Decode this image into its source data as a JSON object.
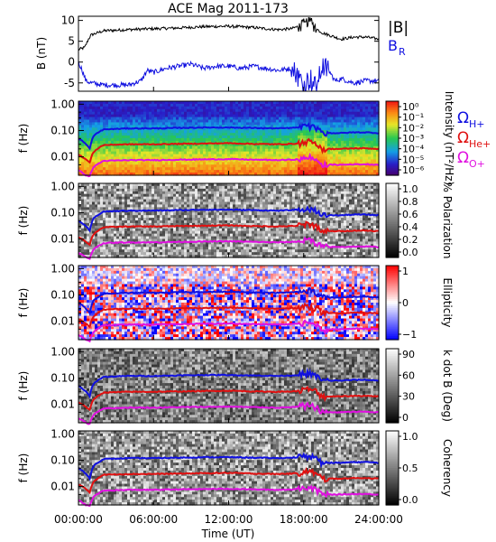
{
  "title": "ACE Mag 2011-173",
  "colors": {
    "total_field": "#000000",
    "radial_field": "#1010e0",
    "h_plus": "#1010e0",
    "he_plus": "#e01010",
    "o_plus": "#e010e0"
  },
  "chart_data": [
    {
      "type": "line",
      "panel": "magnetic-field",
      "title": "ACE Mag 2011-173",
      "ylabel": "B (nT)",
      "ylim": [
        -7,
        11
      ],
      "yticks": [
        "-5",
        "0",
        "5",
        "10"
      ],
      "ytick_values": [
        -5,
        0,
        5,
        10
      ],
      "xlim": [
        0,
        24
      ],
      "legend_position": "right",
      "series": [
        {
          "name": "|B|",
          "color": "#000000",
          "x": [
            0,
            0.5,
            0.8,
            1,
            2,
            4,
            6,
            8,
            10,
            12,
            14,
            15,
            16,
            17,
            17.5,
            18,
            18.5,
            19,
            19.5,
            20,
            20.5,
            21,
            22,
            23,
            24
          ],
          "y": [
            3,
            3.5,
            5.5,
            6.5,
            7.5,
            7.8,
            8.0,
            8.2,
            8.5,
            8.6,
            8.3,
            8.0,
            7.8,
            8.0,
            8.5,
            9.0,
            10.0,
            8.0,
            7.0,
            6.5,
            6.0,
            5.5,
            6.0,
            6.0,
            5.5
          ]
        },
        {
          "name": "B_R",
          "color": "#1010e0",
          "x": [
            0,
            0.3,
            0.6,
            1,
            2,
            4,
            5,
            5.5,
            6,
            7,
            8,
            9,
            10,
            11,
            12,
            13,
            14,
            15,
            16,
            17,
            17.5,
            18,
            18.5,
            19,
            19.5,
            20,
            20.5,
            21,
            22,
            23,
            24
          ],
          "y": [
            0,
            -2,
            -4.5,
            -5,
            -5.5,
            -5.5,
            -4.5,
            -2,
            -2.5,
            -1.5,
            -1,
            -0.5,
            -1.5,
            -1,
            -1,
            -1.5,
            -1,
            -1.5,
            -2,
            -1.5,
            -3,
            -5.5,
            -4,
            -6,
            -1,
            -2,
            -4.5,
            -4,
            -5,
            -4.5,
            -4.5
          ]
        }
      ]
    },
    {
      "type": "heatmap",
      "panel": "wave-power",
      "ylabel": "f (Hz)",
      "yscale": "log",
      "ylim": [
        0.002,
        1.3
      ],
      "yticks": [
        "1.00",
        "0.10",
        "0.01"
      ],
      "ytick_values": [
        1,
        0.1,
        0.01
      ],
      "colorbar_label": "Intensity (nT²/Hz)",
      "colorbar_scale": "log",
      "colorbar_ticks": [
        "10⁰",
        "10⁻¹",
        "10⁻²",
        "10⁻³",
        "10⁻⁴",
        "10⁻⁵",
        "10⁻⁶"
      ],
      "colormap": "rainbow"
    },
    {
      "type": "heatmap",
      "panel": "polarization",
      "ylabel": "f (Hz)",
      "yscale": "log",
      "ylim": [
        0.002,
        1.3
      ],
      "yticks": [
        "1.00",
        "0.10",
        "0.01"
      ],
      "ytick_values": [
        1,
        0.1,
        0.01
      ],
      "colorbar_label": "% Polarization",
      "colorbar_ticks": [
        "1.0",
        "0.8",
        "0.6",
        "0.4",
        "0.2",
        "0.0"
      ],
      "colorbar_tick_values": [
        1,
        0.8,
        0.6,
        0.4,
        0.2,
        0
      ],
      "colormap": "gray"
    },
    {
      "type": "heatmap",
      "panel": "ellipticity",
      "ylabel": "f (Hz)",
      "yscale": "log",
      "ylim": [
        0.002,
        1.3
      ],
      "yticks": [
        "1.00",
        "0.10",
        "0.01"
      ],
      "ytick_values": [
        1,
        0.1,
        0.01
      ],
      "colorbar_label": "Ellipticity",
      "colorbar_ticks": [
        "1",
        "0",
        "−1"
      ],
      "colorbar_tick_values": [
        1,
        0,
        -1
      ],
      "colormap": "blue-white-red"
    },
    {
      "type": "heatmap",
      "panel": "wave-normal-angle",
      "ylabel": "f (Hz)",
      "yscale": "log",
      "ylim": [
        0.002,
        1.3
      ],
      "yticks": [
        "1.00",
        "0.10",
        "0.01"
      ],
      "ytick_values": [
        1,
        0.1,
        0.01
      ],
      "colorbar_label": "k dot B (Deg)",
      "colorbar_ticks": [
        "90",
        "60",
        "30",
        "0"
      ],
      "colorbar_tick_values": [
        90,
        60,
        30,
        0
      ],
      "colormap": "gray"
    },
    {
      "type": "heatmap",
      "panel": "coherency",
      "ylabel": "f (Hz)",
      "yscale": "log",
      "ylim": [
        0.002,
        1.3
      ],
      "yticks": [
        "1.00",
        "0.10",
        "0.01"
      ],
      "ytick_values": [
        1,
        0.1,
        0.01
      ],
      "colorbar_label": "Coherency",
      "colorbar_ticks": [
        "1.0",
        "0.5",
        "0.0"
      ],
      "colorbar_tick_values": [
        1,
        0.5,
        0
      ],
      "colormap": "gray"
    }
  ],
  "gyrofrequency_lines": {
    "legend": [
      {
        "label": "ΩH+",
        "symbol": "Ω",
        "sub": "H+",
        "color": "#1010e0"
      },
      {
        "label": "ΩHe+",
        "symbol": "Ω",
        "sub": "He+",
        "color": "#e01010"
      },
      {
        "label": "ΩO+",
        "symbol": "Ω",
        "sub": "O+",
        "color": "#e010e0"
      }
    ],
    "x": [
      0,
      0.3,
      0.6,
      0.9,
      1.2,
      2,
      4,
      6,
      8,
      10,
      12,
      14,
      16,
      17,
      17.5,
      18,
      18.5,
      19,
      19.5,
      20,
      21,
      22,
      23,
      24
    ],
    "H+": [
      0.05,
      0.04,
      0.03,
      0.02,
      0.06,
      0.11,
      0.12,
      0.12,
      0.125,
      0.13,
      0.13,
      0.125,
      0.12,
      0.125,
      0.13,
      0.14,
      0.15,
      0.12,
      0.08,
      0.08,
      0.08,
      0.085,
      0.085,
      0.08
    ],
    "He+": [
      0.012,
      0.01,
      0.008,
      0.006,
      0.015,
      0.028,
      0.03,
      0.03,
      0.031,
      0.032,
      0.033,
      0.031,
      0.03,
      0.031,
      0.032,
      0.035,
      0.038,
      0.03,
      0.02,
      0.02,
      0.02,
      0.021,
      0.021,
      0.02
    ],
    "O+": [
      0.003,
      0.0025,
      0.002,
      0.0018,
      0.004,
      0.007,
      0.0075,
      0.0075,
      0.0078,
      0.008,
      0.0082,
      0.0078,
      0.0075,
      0.0078,
      0.008,
      0.0088,
      0.0095,
      0.0075,
      0.005,
      0.005,
      0.005,
      0.0052,
      0.0052,
      0.005
    ]
  },
  "x_axis": {
    "ticks": [
      "00:00:00",
      "06:00:00",
      "12:00:00",
      "18:00:00",
      "24:00:00"
    ],
    "tick_values": [
      0,
      6,
      12,
      18,
      24
    ],
    "label": "Time (UT)"
  }
}
